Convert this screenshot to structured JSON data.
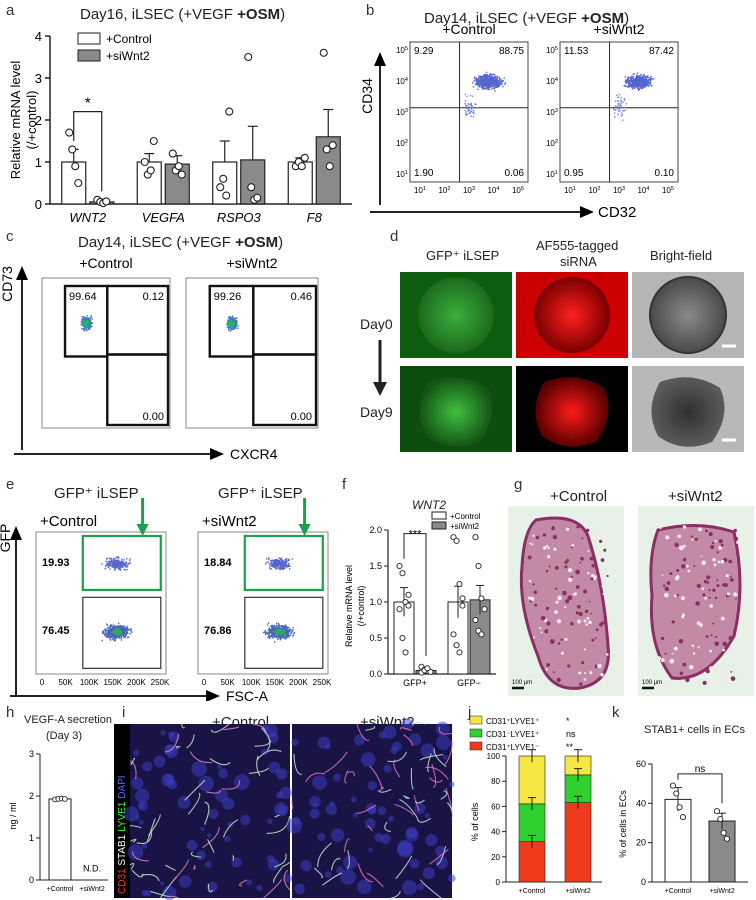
{
  "panel_a": {
    "letter": "a",
    "title_prefix": "Day16, iLSEC (+VEGF ",
    "title_bold": "+OSM",
    "title_suffix": ")",
    "ylabel": "Relative mRNA level",
    "ylabel2": "(/+control)",
    "legend": [
      "+Control",
      "+siWnt2"
    ],
    "significance": "*",
    "chart_data": {
      "type": "bar",
      "categories": [
        "WNT2",
        "VEGFA",
        "RSPO3",
        "F8"
      ],
      "ylim": [
        0,
        4
      ],
      "yticks": [
        "0",
        "1",
        "2",
        "3",
        "4"
      ],
      "series": [
        {
          "name": "+Control",
          "values": [
            1.0,
            1.0,
            1.0,
            1.0
          ],
          "sem": [
            0.3,
            0.2,
            0.5,
            0.1
          ],
          "points": [
            [
              1.7,
              1.0,
              0.4,
              0.9
            ],
            [
              1.3,
              0.7,
              0.6,
              1.0
            ],
            [
              0.9,
              0.8,
              0.2,
              0.9
            ],
            [
              0.5,
              1.5,
              2.2,
              1.1
            ]
          ]
        },
        {
          "name": "+siWnt2",
          "values": [
            0.05,
            0.95,
            1.05,
            1.6
          ],
          "sem": [
            0.03,
            0.2,
            0.8,
            0.65
          ],
          "points": [
            [
              0.1,
              1.2,
              3.5,
              3.6
            ],
            [
              0.05,
              0.8,
              0.4,
              1.3
            ],
            [
              0.02,
              0.9,
              0.1,
              0.9
            ],
            [
              0.06,
              0.7,
              0.15,
              1.4
            ]
          ]
        }
      ]
    }
  },
  "panel_b": {
    "letter": "b",
    "title_prefix": "Day14, iLSEC (+VEGF ",
    "title_bold": "+OSM",
    "title_suffix": ")",
    "subtitles": [
      "+Control",
      "+siWnt2"
    ],
    "ylabel": "CD34",
    "xlabel": "CD32",
    "plots": [
      {
        "ul": "9.29",
        "ur": "88.75",
        "ll": "1.90",
        "lr": "0.06"
      },
      {
        "ul": "11.53",
        "ur": "87.42",
        "ll": "0.95",
        "lr": "0.10"
      }
    ],
    "yticks": [
      "10^5",
      "10^4",
      "10^3",
      "10^2",
      "10^1"
    ],
    "xticks": [
      "10^1",
      "10^2",
      "10^3",
      "10^4",
      "10^5"
    ]
  },
  "panel_c": {
    "letter": "c",
    "title_prefix": "Day14, iLSEC (+VEGF ",
    "title_bold": "+OSM",
    "title_suffix": ")",
    "subtitles": [
      "+Control",
      "+siWnt2"
    ],
    "ylabel": "CD73",
    "xlabel": "CXCR4",
    "plots": [
      {
        "ul": "99.64",
        "ur": "0.12",
        "lr": "0.00"
      },
      {
        "ul": "99.26",
        "ur": "0.46",
        "lr": "0.00"
      }
    ]
  },
  "panel_d": {
    "letter": "d",
    "columns": [
      "GFP⁺ iLSEP",
      "AF555-tagged",
      "siRNA",
      "Bright-field"
    ],
    "rows": [
      "Day0",
      "Day9"
    ]
  },
  "panel_e": {
    "letter": "e",
    "headers": [
      "GFP⁺ iLSEP",
      "GFP⁺ iLSEP"
    ],
    "subtitles": [
      "+Control",
      "+siWnt2"
    ],
    "ylabel": "GFP",
    "xlabel": "FSC-A",
    "plots": [
      {
        "upper": "19.93",
        "lower": "76.45"
      },
      {
        "upper": "18.84",
        "lower": "76.86"
      }
    ],
    "xticks": [
      "0",
      "50K",
      "100K",
      "150K",
      "200K",
      "250K"
    ]
  },
  "panel_f": {
    "letter": "f",
    "title": "WNT2",
    "ylabel": "Relative mRNA level",
    "ylabel2": "(/+control)",
    "legend": [
      "+Control",
      "+siWnt2"
    ],
    "significance": "***",
    "chart_data": {
      "type": "bar",
      "categories": [
        "GFP+",
        "GFP−"
      ],
      "ylim": [
        0,
        2.0
      ],
      "yticks": [
        "0.0",
        "0.5",
        "1.0",
        "1.5",
        "2.0"
      ],
      "series": [
        {
          "name": "+Control",
          "values": [
            1.0,
            1.0
          ],
          "sem": [
            0.2,
            0.22
          ],
          "points": [
            [
              1.5,
              1.9
            ],
            [
              1.4,
              1.85
            ],
            [
              1.0,
              1.25
            ],
            [
              0.95,
              1.05
            ],
            [
              0.9,
              0.55
            ],
            [
              0.5,
              0.4
            ],
            [
              0.3,
              0.3
            ],
            [
              1.1,
              0.95
            ]
          ]
        },
        {
          "name": "+siWnt2",
          "values": [
            0.05,
            1.03
          ],
          "sem": [
            0.02,
            0.2
          ],
          "points": [
            [
              0.1,
              1.9
            ],
            [
              0.06,
              1.5
            ],
            [
              0.04,
              1.05
            ],
            [
              0.03,
              0.9
            ],
            [
              0.02,
              0.75
            ],
            [
              0.05,
              0.6
            ],
            [
              0.08,
              0.55
            ]
          ]
        }
      ]
    }
  },
  "panel_g": {
    "letter": "g",
    "subtitles": [
      "+Control",
      "+siWnt2"
    ],
    "scale": "100 µm"
  },
  "panel_h": {
    "letter": "h",
    "title": "VEGF-A secretion",
    "subtitle": "(Day 3)",
    "ylabel": "ng / ml",
    "nd": "N.D.",
    "chart_data": {
      "type": "bar",
      "categories": [
        "+Control",
        "+siWnt2"
      ],
      "values": [
        1.93,
        0
      ],
      "ylim": [
        0,
        3
      ],
      "yticks": [
        "0",
        "1",
        "2",
        "3"
      ],
      "points": [
        1.92,
        1.93,
        1.94,
        1.93
      ]
    }
  },
  "panel_i": {
    "letter": "i",
    "subtitles": [
      "+Control",
      "+siWnt2"
    ],
    "stain": [
      {
        "text": "CD31",
        "color": "#ff3030"
      },
      {
        "text": "STAB1",
        "color": "#ffffff"
      },
      {
        "text": "LYVE1",
        "color": "#33ff33"
      },
      {
        "text": "DAPI",
        "color": "#5566ff"
      }
    ]
  },
  "panel_j": {
    "letter": "j",
    "ylabel": "% of cells",
    "legend": [
      {
        "label": "CD31⁺LYVE1⁺",
        "sig": "*",
        "color": "#f5e642"
      },
      {
        "label": "CD31⁻LYVE1⁺",
        "sig": "ns",
        "color": "#2ed12e"
      },
      {
        "label": "CD31⁺LYVE1⁻",
        "sig": "**",
        "color": "#f03a1c"
      }
    ],
    "chart_data": {
      "type": "bar",
      "stacked": true,
      "categories": [
        "+Control",
        "+siWnt2"
      ],
      "ylim": [
        0,
        100
      ],
      "yticks": [
        "0",
        "20",
        "40",
        "60",
        "80",
        "100"
      ],
      "series": [
        {
          "name": "CD31⁺LYVE1⁻",
          "values": [
            32,
            63
          ]
        },
        {
          "name": "CD31⁻LYVE1⁺",
          "values": [
            30,
            22
          ]
        },
        {
          "name": "CD31⁺LYVE1⁺",
          "values": [
            38,
            15
          ]
        }
      ],
      "error_tops": [
        [
          32,
          62,
          100
        ],
        [
          63,
          85,
          100
        ]
      ]
    }
  },
  "panel_k": {
    "letter": "k",
    "title": "STAB1+ cells in ECs",
    "ylabel": "% of cells in ECs",
    "significance": "ns",
    "chart_data": {
      "type": "bar",
      "categories": [
        "+Control",
        "+siWnt2"
      ],
      "values": [
        42,
        31
      ],
      "sem": [
        6,
        4
      ],
      "ylim": [
        0,
        60
      ],
      "yticks": [
        "0",
        "20",
        "40",
        "60"
      ],
      "points": [
        [
          49,
          36
        ],
        [
          45,
          32
        ],
        [
          38,
          25
        ],
        [
          33,
          22
        ]
      ]
    }
  }
}
